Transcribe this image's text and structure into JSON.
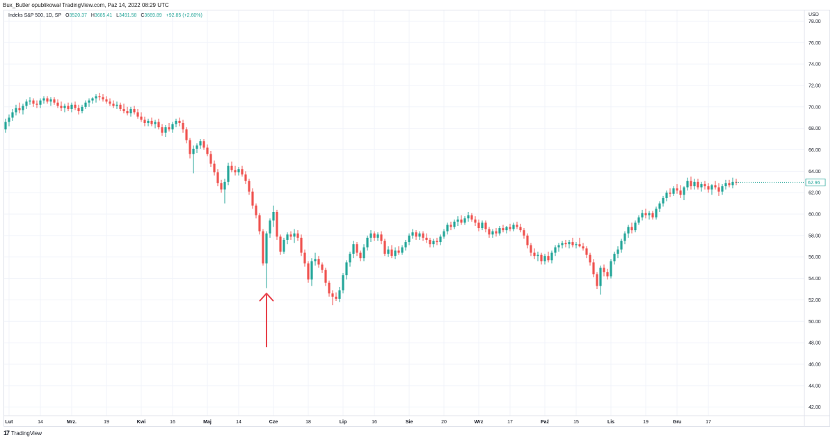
{
  "published_by": "Bux_Butler opublikował TradingView.com, Paź 14, 2022 08:29 UTC",
  "legend": {
    "symbol": "Indeks S&P 500, 1D, SP",
    "open_label": "O",
    "open": "3520.37",
    "high_label": "H",
    "high": "3685.41",
    "low_label": "L",
    "low": "3491.58",
    "close_label": "C",
    "close": "3669.89",
    "change": "+92.85 (+2.60%)"
  },
  "footer": {
    "logo": "17",
    "brand": "TradingView"
  },
  "colors": {
    "up": "#26a69a",
    "down": "#ef5350",
    "arrow": "#e8434c",
    "grid": "#f0f3fa",
    "axis_text": "#131722"
  },
  "chart_data": {
    "type": "candlestick",
    "y_axis_unit": "USD",
    "ylim": [
      41.2,
      79.0
    ],
    "y_ticks": [
      "42.00",
      "44.00",
      "46.00",
      "48.00",
      "50.00",
      "52.00",
      "54.00",
      "56.00",
      "58.00",
      "60.00",
      "62.00",
      "64.00",
      "66.00",
      "68.00",
      "70.00",
      "72.00",
      "74.00",
      "76.00",
      "78.00"
    ],
    "x_ticks": [
      {
        "label": "Lut",
        "bold": true,
        "index": 1
      },
      {
        "label": "14",
        "bold": false,
        "index": 10
      },
      {
        "label": "Mrz.",
        "bold": true,
        "index": 19
      },
      {
        "label": "19",
        "bold": false,
        "index": 29
      },
      {
        "label": "Kwi",
        "bold": true,
        "index": 39
      },
      {
        "label": "16",
        "bold": false,
        "index": 48
      },
      {
        "label": "Maj",
        "bold": true,
        "index": 58
      },
      {
        "label": "14",
        "bold": false,
        "index": 67
      },
      {
        "label": "Cze",
        "bold": true,
        "index": 77
      },
      {
        "label": "18",
        "bold": false,
        "index": 87
      },
      {
        "label": "Lip",
        "bold": true,
        "index": 97
      },
      {
        "label": "16",
        "bold": false,
        "index": 106
      },
      {
        "label": "Sie",
        "bold": true,
        "index": 116
      },
      {
        "label": "20",
        "bold": false,
        "index": 126
      },
      {
        "label": "Wrz",
        "bold": true,
        "index": 136
      },
      {
        "label": "17",
        "bold": false,
        "index": 145
      },
      {
        "label": "Paź",
        "bold": true,
        "index": 155
      },
      {
        "label": "15",
        "bold": false,
        "index": 164
      },
      {
        "label": "Lis",
        "bold": true,
        "index": 174
      },
      {
        "label": "19",
        "bold": false,
        "index": 184
      },
      {
        "label": "Gru",
        "bold": true,
        "index": 193
      },
      {
        "label": "17",
        "bold": false,
        "index": 202
      }
    ],
    "last_price": "62.96",
    "annotation": {
      "type": "up-arrow",
      "index": 75,
      "from_value": 47.6,
      "to_value": 52.6
    },
    "candles": [
      [
        67.9,
        68.9,
        67.6,
        68.6
      ],
      [
        68.6,
        69.3,
        68.2,
        69.0
      ],
      [
        69.0,
        69.8,
        68.7,
        69.5
      ],
      [
        69.5,
        70.2,
        69.2,
        69.9
      ],
      [
        69.9,
        70.4,
        69.4,
        69.7
      ],
      [
        69.7,
        70.3,
        69.3,
        70.1
      ],
      [
        70.1,
        70.7,
        69.8,
        70.5
      ],
      [
        70.5,
        70.9,
        70.2,
        70.6
      ],
      [
        70.6,
        70.8,
        70.0,
        70.3
      ],
      [
        70.3,
        70.6,
        69.9,
        70.2
      ],
      [
        70.2,
        70.8,
        69.9,
        70.6
      ],
      [
        70.6,
        71.0,
        70.3,
        70.8
      ],
      [
        70.8,
        71.0,
        70.3,
        70.5
      ],
      [
        70.5,
        70.9,
        70.1,
        70.7
      ],
      [
        70.7,
        70.9,
        70.2,
        70.4
      ],
      [
        70.4,
        70.7,
        69.9,
        70.1
      ],
      [
        70.1,
        70.5,
        69.6,
        69.9
      ],
      [
        69.9,
        70.3,
        69.5,
        70.1
      ],
      [
        70.1,
        70.4,
        69.6,
        69.8
      ],
      [
        69.8,
        70.4,
        69.5,
        70.2
      ],
      [
        70.2,
        70.5,
        69.7,
        69.9
      ],
      [
        69.9,
        70.2,
        69.3,
        69.6
      ],
      [
        69.6,
        70.2,
        69.4,
        70.0
      ],
      [
        70.0,
        70.6,
        69.8,
        70.4
      ],
      [
        70.4,
        70.8,
        70.0,
        70.6
      ],
      [
        70.6,
        70.9,
        70.3,
        70.8
      ],
      [
        70.8,
        71.2,
        70.4,
        71.0
      ],
      [
        71.0,
        71.3,
        70.6,
        70.9
      ],
      [
        70.9,
        71.2,
        70.5,
        70.7
      ],
      [
        70.7,
        71.0,
        70.3,
        70.5
      ],
      [
        70.5,
        70.8,
        70.1,
        70.3
      ],
      [
        70.3,
        70.6,
        69.9,
        70.1
      ],
      [
        70.1,
        70.5,
        69.8,
        70.2
      ],
      [
        70.2,
        70.4,
        69.6,
        69.8
      ],
      [
        69.8,
        70.3,
        69.4,
        69.6
      ],
      [
        69.6,
        70.0,
        69.2,
        69.4
      ],
      [
        69.4,
        70.0,
        69.1,
        69.8
      ],
      [
        69.8,
        70.1,
        69.3,
        69.5
      ],
      [
        69.5,
        69.8,
        68.9,
        69.1
      ],
      [
        69.1,
        69.5,
        68.6,
        68.8
      ],
      [
        68.8,
        69.1,
        68.2,
        68.5
      ],
      [
        68.5,
        68.9,
        68.2,
        68.7
      ],
      [
        68.7,
        69.0,
        68.2,
        68.4
      ],
      [
        68.4,
        68.8,
        68.0,
        68.6
      ],
      [
        68.6,
        68.9,
        67.9,
        68.1
      ],
      [
        68.1,
        68.4,
        67.3,
        67.6
      ],
      [
        67.6,
        68.3,
        67.2,
        68.1
      ],
      [
        68.1,
        68.5,
        67.7,
        67.9
      ],
      [
        67.9,
        68.6,
        67.6,
        68.4
      ],
      [
        68.4,
        68.9,
        68.1,
        68.7
      ],
      [
        68.7,
        69.0,
        68.2,
        68.5
      ],
      [
        68.5,
        68.8,
        67.6,
        67.9
      ],
      [
        67.9,
        68.1,
        66.6,
        66.9
      ],
      [
        66.9,
        67.1,
        65.2,
        65.6
      ],
      [
        65.6,
        66.4,
        63.8,
        66.1
      ],
      [
        66.1,
        66.6,
        65.7,
        66.4
      ],
      [
        66.4,
        67.0,
        66.1,
        66.8
      ],
      [
        66.8,
        67.0,
        66.0,
        66.2
      ],
      [
        66.2,
        66.5,
        65.4,
        65.6
      ],
      [
        65.6,
        65.9,
        64.4,
        64.7
      ],
      [
        64.7,
        65.0,
        63.6,
        63.9
      ],
      [
        63.9,
        64.2,
        62.6,
        62.9
      ],
      [
        62.9,
        63.2,
        62.0,
        62.3
      ],
      [
        62.3,
        63.3,
        61.0,
        63.0
      ],
      [
        63.0,
        64.8,
        62.7,
        64.5
      ],
      [
        64.5,
        64.9,
        63.9,
        64.1
      ],
      [
        64.1,
        64.5,
        63.6,
        63.9
      ],
      [
        63.9,
        64.4,
        63.6,
        64.2
      ],
      [
        64.2,
        64.5,
        63.5,
        63.7
      ],
      [
        63.7,
        64.0,
        62.8,
        63.1
      ],
      [
        63.1,
        63.3,
        61.8,
        62.1
      ],
      [
        62.1,
        62.4,
        60.5,
        60.8
      ],
      [
        60.8,
        61.0,
        59.6,
        59.9
      ],
      [
        59.9,
        60.1,
        58.1,
        58.4
      ],
      [
        58.4,
        58.6,
        55.2,
        55.4
      ],
      [
        55.4,
        58.4,
        53.1,
        58.2
      ],
      [
        58.2,
        59.6,
        57.8,
        59.4
      ],
      [
        59.4,
        60.8,
        58.8,
        60.2
      ],
      [
        60.2,
        60.4,
        57.6,
        57.9
      ],
      [
        57.9,
        58.1,
        56.2,
        56.5
      ],
      [
        56.5,
        57.8,
        56.3,
        57.6
      ],
      [
        57.6,
        58.3,
        57.2,
        58.1
      ],
      [
        58.1,
        58.4,
        57.6,
        57.9
      ],
      [
        57.9,
        58.6,
        57.3,
        58.2
      ],
      [
        58.2,
        58.5,
        57.5,
        57.8
      ],
      [
        57.8,
        58.1,
        56.1,
        56.4
      ],
      [
        56.4,
        56.7,
        55.1,
        55.4
      ],
      [
        55.4,
        55.6,
        53.6,
        53.9
      ],
      [
        53.9,
        55.9,
        53.3,
        55.6
      ],
      [
        55.6,
        56.4,
        55.2,
        55.8
      ],
      [
        55.8,
        56.1,
        55.0,
        55.3
      ],
      [
        55.3,
        55.5,
        54.5,
        54.8
      ],
      [
        54.8,
        55.0,
        53.3,
        53.6
      ],
      [
        53.6,
        53.8,
        52.3,
        52.6
      ],
      [
        52.6,
        52.9,
        51.5,
        52.3
      ],
      [
        52.3,
        52.7,
        51.9,
        52.1
      ],
      [
        52.1,
        53.2,
        51.8,
        52.9
      ],
      [
        52.9,
        54.5,
        52.6,
        54.3
      ],
      [
        54.3,
        55.7,
        53.9,
        55.5
      ],
      [
        55.5,
        56.5,
        55.1,
        56.3
      ],
      [
        56.3,
        57.5,
        55.9,
        57.2
      ],
      [
        57.2,
        57.4,
        56.1,
        56.4
      ],
      [
        56.4,
        56.6,
        55.6,
        55.9
      ],
      [
        55.9,
        57.2,
        55.6,
        56.9
      ],
      [
        56.9,
        58.0,
        56.6,
        57.8
      ],
      [
        57.8,
        58.5,
        57.4,
        58.2
      ],
      [
        58.2,
        58.4,
        57.5,
        57.8
      ],
      [
        57.8,
        58.3,
        57.5,
        58.1
      ],
      [
        58.1,
        58.4,
        57.2,
        57.5
      ],
      [
        57.5,
        57.7,
        56.1,
        56.3
      ],
      [
        56.3,
        57.0,
        56.0,
        56.7
      ],
      [
        56.7,
        57.1,
        55.9,
        56.1
      ],
      [
        56.1,
        56.9,
        55.8,
        56.6
      ],
      [
        56.6,
        57.0,
        56.2,
        56.4
      ],
      [
        56.4,
        57.1,
        56.2,
        56.9
      ],
      [
        56.9,
        57.6,
        56.6,
        57.4
      ],
      [
        57.4,
        58.2,
        57.1,
        58.0
      ],
      [
        58.0,
        58.6,
        57.7,
        58.3
      ],
      [
        58.3,
        58.5,
        57.6,
        57.9
      ],
      [
        57.9,
        58.4,
        57.6,
        58.2
      ],
      [
        58.2,
        58.4,
        57.5,
        57.8
      ],
      [
        57.8,
        58.2,
        57.3,
        57.6
      ],
      [
        57.6,
        57.8,
        56.9,
        57.2
      ],
      [
        57.2,
        57.7,
        56.9,
        57.5
      ],
      [
        57.5,
        57.8,
        57.1,
        57.4
      ],
      [
        57.4,
        58.1,
        57.1,
        57.9
      ],
      [
        57.9,
        58.6,
        57.7,
        58.4
      ],
      [
        58.4,
        59.2,
        58.1,
        59.0
      ],
      [
        59.0,
        59.3,
        58.5,
        58.8
      ],
      [
        58.8,
        59.5,
        58.6,
        59.3
      ],
      [
        59.3,
        59.8,
        58.9,
        59.5
      ],
      [
        59.5,
        59.9,
        59.0,
        59.2
      ],
      [
        59.2,
        59.8,
        59.0,
        59.6
      ],
      [
        59.6,
        60.2,
        59.3,
        59.9
      ],
      [
        59.9,
        60.1,
        59.3,
        59.5
      ],
      [
        59.5,
        59.8,
        58.9,
        59.2
      ],
      [
        59.2,
        59.5,
        58.4,
        58.7
      ],
      [
        58.7,
        59.4,
        58.5,
        59.2
      ],
      [
        59.2,
        59.4,
        58.3,
        58.6
      ],
      [
        58.6,
        58.8,
        57.8,
        58.1
      ],
      [
        58.1,
        58.6,
        57.8,
        58.4
      ],
      [
        58.4,
        58.7,
        57.9,
        58.2
      ],
      [
        58.2,
        58.9,
        58.0,
        58.7
      ],
      [
        58.7,
        59.0,
        58.3,
        58.5
      ],
      [
        58.5,
        58.9,
        58.2,
        58.8
      ],
      [
        58.8,
        59.1,
        58.4,
        58.6
      ],
      [
        58.6,
        59.2,
        58.4,
        59.0
      ],
      [
        59.0,
        59.3,
        58.6,
        58.8
      ],
      [
        58.8,
        59.1,
        58.3,
        58.5
      ],
      [
        58.5,
        58.7,
        57.7,
        58.0
      ],
      [
        58.0,
        58.2,
        56.8,
        57.1
      ],
      [
        57.1,
        57.3,
        56.1,
        56.4
      ],
      [
        56.4,
        56.8,
        55.8,
        56.1
      ],
      [
        56.1,
        56.5,
        55.6,
        56.2
      ],
      [
        56.2,
        56.4,
        55.3,
        55.6
      ],
      [
        55.6,
        56.3,
        55.3,
        56.1
      ],
      [
        56.1,
        56.5,
        55.5,
        55.7
      ],
      [
        55.7,
        56.6,
        55.4,
        56.4
      ],
      [
        56.4,
        57.1,
        56.1,
        56.9
      ],
      [
        56.9,
        57.3,
        56.5,
        57.1
      ],
      [
        57.1,
        57.5,
        56.8,
        57.3
      ],
      [
        57.3,
        57.6,
        56.9,
        57.2
      ],
      [
        57.2,
        57.6,
        56.8,
        57.4
      ],
      [
        57.4,
        57.8,
        56.9,
        57.1
      ],
      [
        57.1,
        57.4,
        56.8,
        57.2
      ],
      [
        57.2,
        57.8,
        56.9,
        57.0
      ],
      [
        57.0,
        57.3,
        56.6,
        56.8
      ],
      [
        56.8,
        57.0,
        55.9,
        56.2
      ],
      [
        56.2,
        56.4,
        55.2,
        55.5
      ],
      [
        55.5,
        55.8,
        54.1,
        54.4
      ],
      [
        54.4,
        54.6,
        53.0,
        53.3
      ],
      [
        53.3,
        55.2,
        52.5,
        55.0
      ],
      [
        55.0,
        55.3,
        54.2,
        54.6
      ],
      [
        54.6,
        54.9,
        53.9,
        54.2
      ],
      [
        54.2,
        55.8,
        54.0,
        55.6
      ],
      [
        55.6,
        56.5,
        55.3,
        56.3
      ],
      [
        56.3,
        57.0,
        55.9,
        56.7
      ],
      [
        56.7,
        57.7,
        56.4,
        57.5
      ],
      [
        57.5,
        58.4,
        57.2,
        58.2
      ],
      [
        58.2,
        59.0,
        57.8,
        58.8
      ],
      [
        58.8,
        59.2,
        58.2,
        58.5
      ],
      [
        58.5,
        59.4,
        58.3,
        59.2
      ],
      [
        59.2,
        59.9,
        59.0,
        59.7
      ],
      [
        59.7,
        60.4,
        59.4,
        60.1
      ],
      [
        60.1,
        60.5,
        59.6,
        59.9
      ],
      [
        59.9,
        60.3,
        59.5,
        60.1
      ],
      [
        60.1,
        60.3,
        59.5,
        59.7
      ],
      [
        59.7,
        60.7,
        59.5,
        60.5
      ],
      [
        60.5,
        61.2,
        60.2,
        61.0
      ],
      [
        61.0,
        61.7,
        60.7,
        61.5
      ],
      [
        61.5,
        62.2,
        61.2,
        62.0
      ],
      [
        62.0,
        62.4,
        61.6,
        61.9
      ],
      [
        61.9,
        62.6,
        61.7,
        62.4
      ],
      [
        62.4,
        62.8,
        61.9,
        62.2
      ],
      [
        62.2,
        62.7,
        61.5,
        61.8
      ],
      [
        61.8,
        62.6,
        61.3,
        62.5
      ],
      [
        62.5,
        63.4,
        62.2,
        63.1
      ],
      [
        63.1,
        63.5,
        62.3,
        62.6
      ],
      [
        62.6,
        63.3,
        62.3,
        63.0
      ],
      [
        63.0,
        63.3,
        62.3,
        62.5
      ],
      [
        62.5,
        63.0,
        62.1,
        62.8
      ],
      [
        62.8,
        63.1,
        62.3,
        62.6
      ],
      [
        62.6,
        62.9,
        62.0,
        62.3
      ],
      [
        62.3,
        62.8,
        61.8,
        62.7
      ],
      [
        62.7,
        63.1,
        62.3,
        62.5
      ],
      [
        62.5,
        62.9,
        61.7,
        62.1
      ],
      [
        62.1,
        62.8,
        61.8,
        62.6
      ],
      [
        62.6,
        63.2,
        62.3,
        62.9
      ],
      [
        62.9,
        63.2,
        62.5,
        62.7
      ],
      [
        62.7,
        63.4,
        62.4,
        63.0
      ],
      [
        63.0,
        63.3,
        62.7,
        62.96
      ]
    ]
  }
}
